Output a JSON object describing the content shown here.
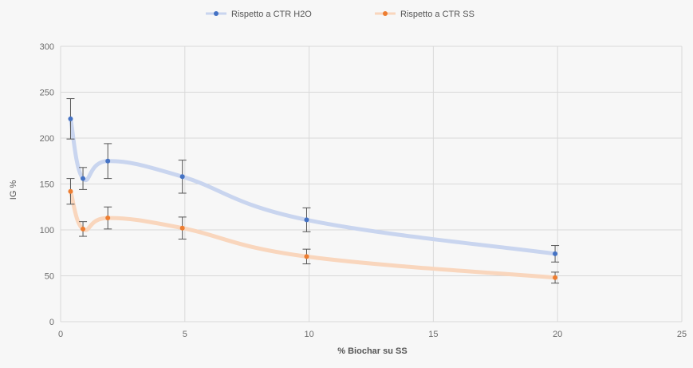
{
  "chart_data": {
    "type": "scatter",
    "title": "",
    "xlabel": "% Biochar su SS",
    "ylabel": "IG %",
    "xlim": [
      0,
      25
    ],
    "ylim": [
      0,
      300
    ],
    "x_ticks": [
      0,
      5,
      10,
      15,
      20,
      25
    ],
    "y_ticks": [
      0,
      50,
      100,
      150,
      200,
      250,
      300
    ],
    "grid": "on",
    "legend_position": "top",
    "lines": "smoothed",
    "series": [
      {
        "name": "Rispetto a CTR H2O",
        "color": "#4472c4",
        "line_color": "#c9d5ef",
        "x": [
          0.4,
          0.9,
          1.9,
          4.9,
          9.9,
          19.9
        ],
        "y": [
          221,
          156,
          175,
          158,
          111,
          74
        ],
        "err": [
          22,
          12,
          19,
          18,
          13,
          9
        ]
      },
      {
        "name": "Rispetto a CTR SS",
        "color": "#ed7d31",
        "line_color": "#f9d6bd",
        "x": [
          0.4,
          0.9,
          1.9,
          4.9,
          9.9,
          19.9
        ],
        "y": [
          142,
          101,
          113,
          102,
          71,
          48
        ],
        "err": [
          14,
          8,
          12,
          12,
          8,
          6
        ]
      }
    ]
  }
}
